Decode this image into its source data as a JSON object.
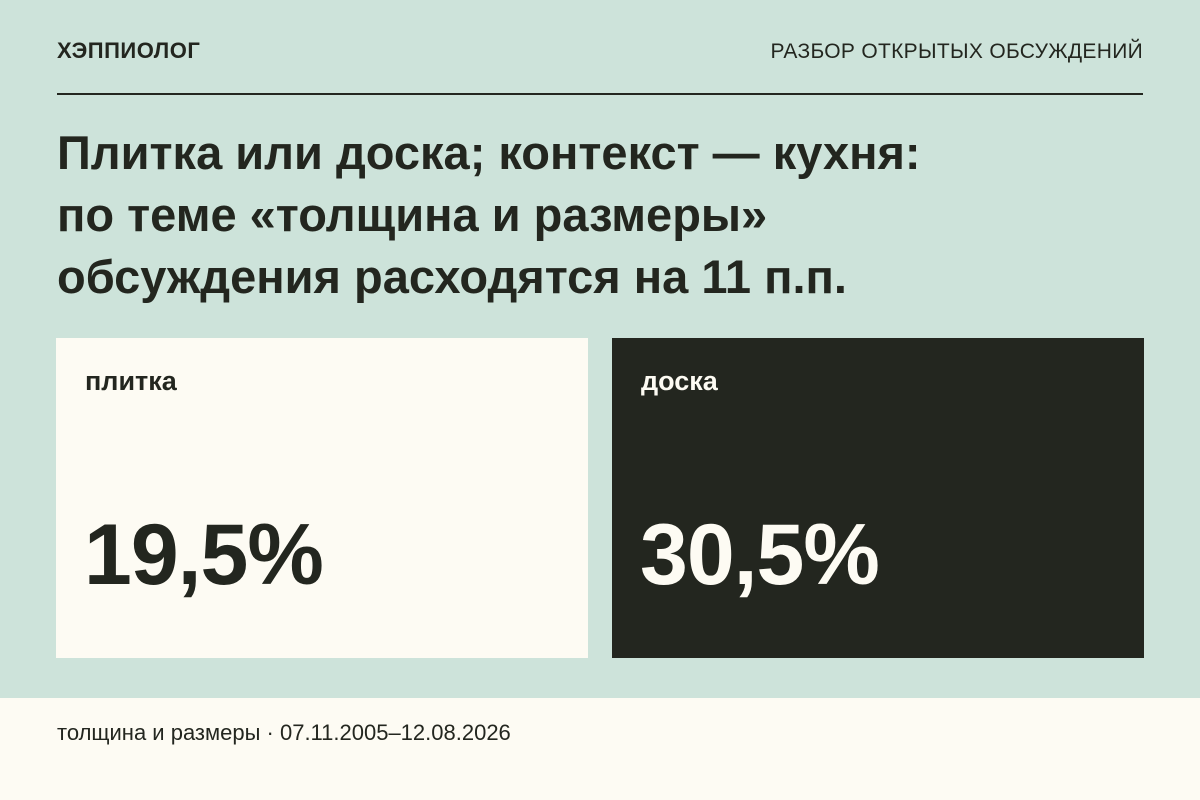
{
  "header": {
    "brand": "ХЭППИОЛОГ",
    "section": "РАЗБОР ОТКРЫТЫХ ОБСУЖДЕНИЙ"
  },
  "title": [
    "Плитка или доска; контекст — кухня:",
    "по теме «толщина и размеры»",
    "обсуждения расходятся на 11 п.п."
  ],
  "cards": [
    {
      "label": "плитка",
      "value": "19,5%"
    },
    {
      "label": "доска",
      "value": "30,5%"
    }
  ],
  "footer": "толщина и размеры · 07.11.2005–12.08.2026"
}
